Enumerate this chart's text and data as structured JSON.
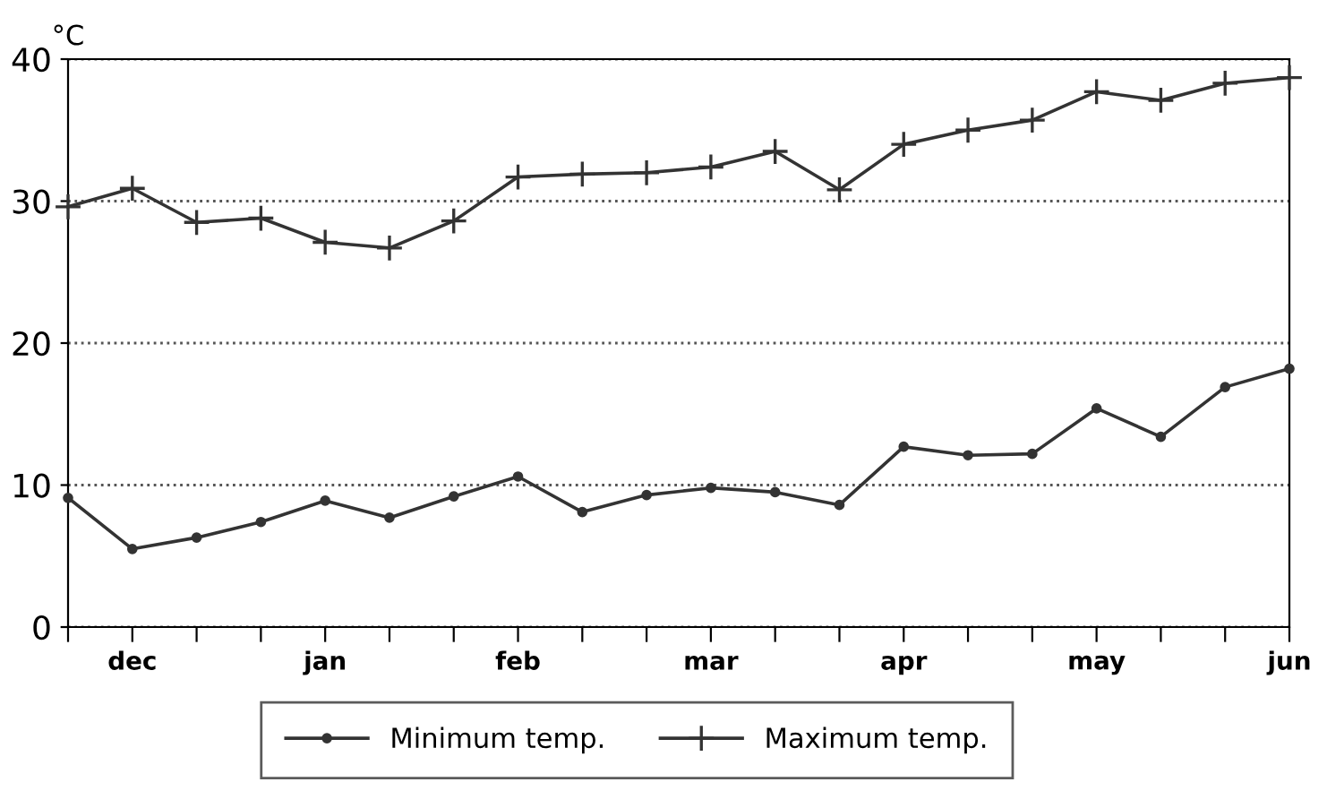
{
  "chart_data": {
    "type": "line",
    "ylabel": "°C",
    "categories": [
      null,
      "dec",
      null,
      null,
      "jan",
      null,
      null,
      "feb",
      null,
      null,
      "mar",
      null,
      null,
      "apr",
      null,
      null,
      "may",
      null,
      null,
      "jun"
    ],
    "series": [
      {
        "name": "Minimum temp.",
        "color": "#333333",
        "marker": "circle",
        "values": [
          9.1,
          5.5,
          6.3,
          7.4,
          8.9,
          7.7,
          9.2,
          10.6,
          8.1,
          9.3,
          9.8,
          9.5,
          8.6,
          12.7,
          12.1,
          12.2,
          15.4,
          13.4,
          16.9,
          18.2
        ]
      },
      {
        "name": "Maximum temp.",
        "color": "#333333",
        "marker": "cross",
        "values": [
          29.6,
          30.9,
          28.5,
          28.8,
          27.1,
          26.7,
          28.6,
          31.7,
          31.9,
          32.0,
          32.4,
          33.5,
          30.8,
          34.0,
          35.0,
          35.7,
          37.7,
          37.1,
          38.3,
          38.7
        ]
      }
    ],
    "ylim": [
      0,
      40
    ],
    "yticks": [
      0,
      10,
      20,
      30,
      40
    ],
    "grid": "y",
    "legend": "bottom",
    "line_style": "solid"
  }
}
